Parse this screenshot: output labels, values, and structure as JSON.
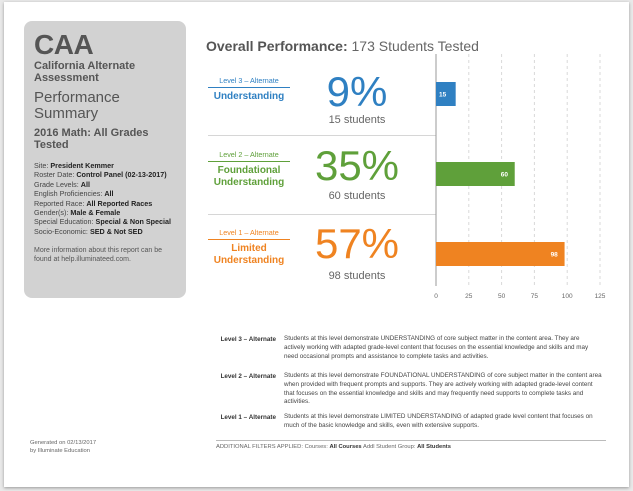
{
  "sidebar": {
    "acronym": "CAA",
    "assessment_name": "California Alternate Assessment",
    "report_type": "Performance Summary",
    "subject": "2016 Math: All Grades Tested",
    "filters": [
      {
        "label": "Site:",
        "value": "President Kemmer"
      },
      {
        "label": "Roster Date:",
        "value": "Control Panel (02-13-2017)"
      },
      {
        "label": "Grade Levels:",
        "value": "All"
      },
      {
        "label": "English Proficiencies:",
        "value": "All"
      },
      {
        "label": "Reported Race:",
        "value": "All Reported Races"
      },
      {
        "label": "Gender(s):",
        "value": "Male & Female"
      },
      {
        "label": "Special Education:",
        "value": "Special & Non Special"
      },
      {
        "label": "Socio-Economic:",
        "value": "SED & Not SED"
      }
    ],
    "more_info": "More information about this report can be found at help.illuminateed.com."
  },
  "overall": {
    "title_bold": "Overall Performance:",
    "title_rest": "173 Students Tested"
  },
  "levels": [
    {
      "name": "Level 3 – Alternate",
      "description": "Understanding",
      "percent": "9%",
      "count": "15 students",
      "color": "#2f80c2"
    },
    {
      "name": "Level 2 – Alternate",
      "description": "Foundational Understanding",
      "percent": "35%",
      "count": "60 students",
      "color": "#5fa03a"
    },
    {
      "name": "Level 1 – Alternate",
      "description": "Limited Understanding",
      "percent": "57%",
      "count": "98 students",
      "color": "#ef8321"
    }
  ],
  "chart_data": {
    "type": "bar",
    "orientation": "horizontal",
    "categories": [
      "Level 3 – Alternate",
      "Level 2 – Alternate",
      "Level 1 – Alternate"
    ],
    "values": [
      15,
      60,
      98
    ],
    "data_labels": [
      "15",
      "60",
      "98"
    ],
    "colors": [
      "#2f80c2",
      "#5fa03a",
      "#ef8321"
    ],
    "xlim": [
      0,
      125
    ],
    "xticks": [
      0,
      25,
      50,
      75,
      100,
      125
    ],
    "grid": true,
    "title": "",
    "xlabel": "",
    "ylabel": ""
  },
  "legend": [
    {
      "label": "Level 3 – Alternate",
      "text": "Students at this level demonstrate UNDERSTANDING of core subject matter in the content area. They are actively working with adapted grade-level content that focuses on the essential knowledge and skills and may need occasional prompts and assistance to complete tasks and activities."
    },
    {
      "label": "Level 2 – Alternate",
      "text": "Students at this level demonstrate FOUNDATIONAL UNDERSTANDING of core subject matter in the content area when provided with frequent prompts and supports. They are actively working with adapted grade-level content that focuses on the essential knowledge and skills and may frequently need supports to complete tasks and activities."
    },
    {
      "label": "Level 1 – Alternate",
      "text": "Students at this level demonstrate LIMITED UNDERSTANDING of adapted grade level content that focuses on much of the basic knowledge and skills, even with extensive supports."
    }
  ],
  "additional_filters": {
    "prefix": "ADDITIONAL FILTERS APPLIED:",
    "courses_label": "Courses:",
    "courses_value": "All Courses",
    "group_label": "Addl Student Group:",
    "group_value": "All Students"
  },
  "footer": {
    "generated": "Generated on 02/13/2017",
    "by": "by Illuminate Education"
  }
}
